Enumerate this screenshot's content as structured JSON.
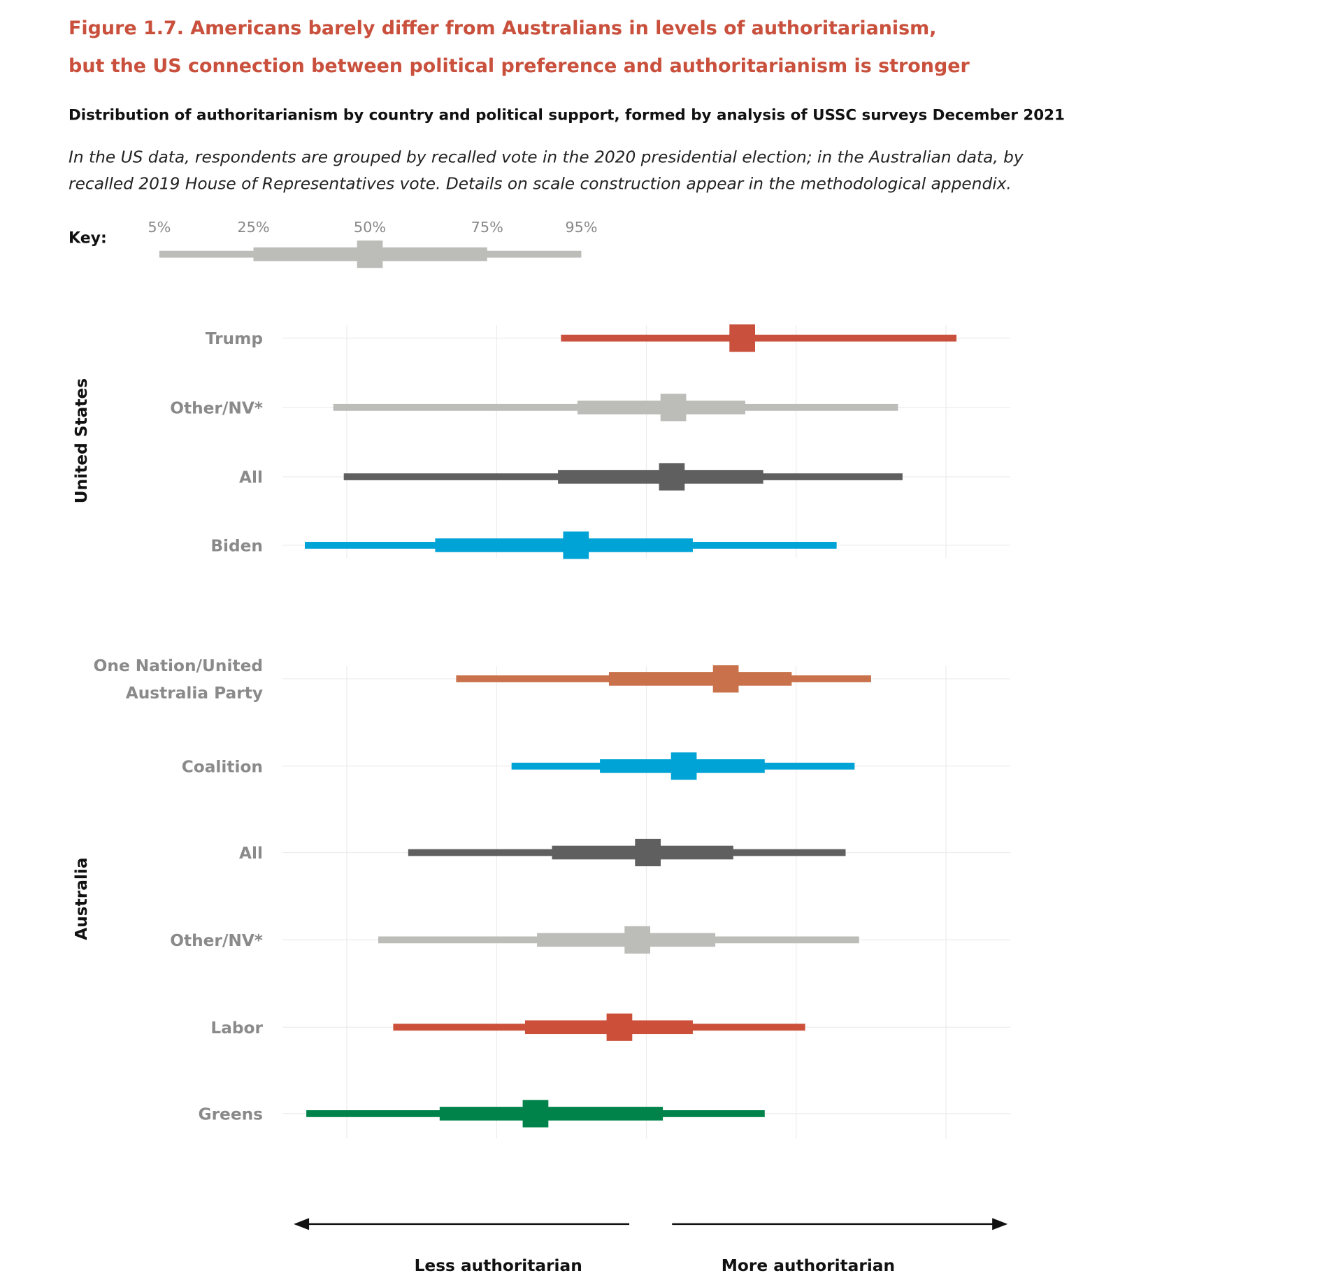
{
  "chart_data": {
    "type": "interval",
    "title": [
      "Figure 1.7. Americans barely differ from Australians in levels of authoritarianism,",
      "but the US connection between political preference and authoritarianism is stronger"
    ],
    "subtitle": "Distribution of authoritarianism by country and political support, formed by analysis of USSC surveys December 2021",
    "note": [
      "In the US data, respondents are grouped by recalled vote in the 2020 presidential election; in the Australian data, by",
      "recalled 2019 House of Representatives vote. Details on scale construction appear in the methodological appendix."
    ],
    "key": {
      "label": "Key:",
      "quantiles": [
        "5%",
        "25%",
        "50%",
        "75%",
        "95%"
      ],
      "color": "#bcbcb8"
    },
    "xlim": [
      0.5,
      5.5
    ],
    "grid_x": [
      1,
      2,
      3,
      4,
      5
    ],
    "grid": true,
    "x_labels": [
      "Less authoritarian",
      "More authoritarian"
    ],
    "panels": [
      {
        "name": "United States",
        "rows": [
          {
            "label": [
              "Trump"
            ],
            "color": "#c9503c",
            "values": [
              2.43,
              null,
              3.64,
              null,
              5.07
            ]
          },
          {
            "label": [
              "Other/NV*"
            ],
            "color": "#bcbcb8",
            "values": [
              0.91,
              2.54,
              3.18,
              3.66,
              4.68
            ]
          },
          {
            "label": [
              "All"
            ],
            "color": "#5f5f5f",
            "values": [
              0.98,
              2.41,
              3.17,
              3.78,
              4.71
            ]
          },
          {
            "label": [
              "Biden"
            ],
            "color": "#00a3d6",
            "values": [
              0.72,
              1.59,
              2.53,
              3.31,
              4.27
            ]
          }
        ]
      },
      {
        "name": "Australia",
        "rows": [
          {
            "label": [
              "One Nation/United",
              "Australia Party"
            ],
            "color": "#c8714a",
            "values": [
              1.73,
              2.75,
              3.53,
              3.97,
              4.5
            ]
          },
          {
            "label": [
              "Coalition"
            ],
            "color": "#00a3d6",
            "values": [
              2.1,
              2.69,
              3.25,
              3.79,
              4.39
            ]
          },
          {
            "label": [
              "All"
            ],
            "color": "#5f5f5f",
            "values": [
              1.41,
              2.37,
              3.01,
              3.58,
              4.33
            ]
          },
          {
            "label": [
              "Other/NV*"
            ],
            "color": "#bcbcb8",
            "values": [
              1.21,
              2.27,
              2.94,
              3.46,
              4.42
            ]
          },
          {
            "label": [
              "Labor"
            ],
            "color": "#cc4f3a",
            "values": [
              1.31,
              2.19,
              2.82,
              3.31,
              4.06
            ]
          },
          {
            "label": [
              "Greens"
            ],
            "color": "#00834a",
            "values": [
              0.73,
              1.62,
              2.26,
              3.11,
              3.79
            ]
          }
        ]
      }
    ]
  }
}
